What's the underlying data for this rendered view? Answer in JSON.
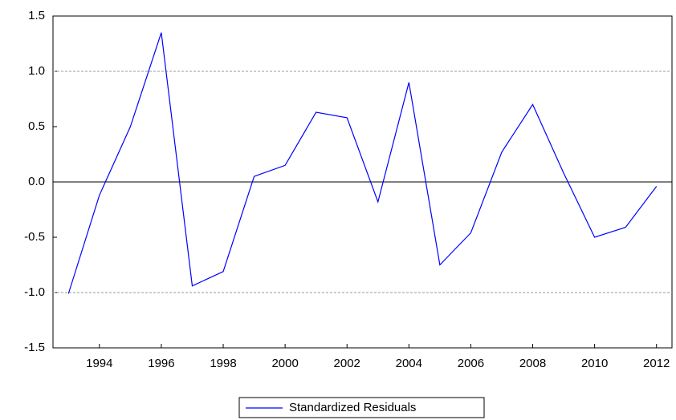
{
  "chart_data": {
    "type": "line",
    "x": [
      1993,
      1994,
      1995,
      1996,
      1997,
      1998,
      1999,
      2000,
      2001,
      2002,
      2003,
      2004,
      2005,
      2006,
      2007,
      2008,
      2009,
      2010,
      2011,
      2012
    ],
    "series": [
      {
        "name": "Standardized Residuals",
        "color": "#0000ff",
        "values": [
          -1.01,
          -0.12,
          0.5,
          1.35,
          -0.94,
          -0.81,
          0.05,
          0.15,
          0.63,
          0.58,
          -0.18,
          0.9,
          -0.75,
          -0.46,
          0.27,
          0.7,
          0.08,
          -0.5,
          -0.41,
          -0.04
        ]
      }
    ],
    "xlim": [
      1992.5,
      2012.5
    ],
    "xticks": [
      1994,
      1996,
      1998,
      2000,
      2002,
      2004,
      2006,
      2008,
      2010,
      2012
    ],
    "ylim": [
      -1.5,
      1.5
    ],
    "yticks": [
      1.5,
      {
        "value": 1,
        "label": "1.0"
      },
      0.5,
      {
        "value": 0,
        "label": "0.0"
      },
      -0.5,
      {
        "value": -1,
        "label": "-1.0"
      },
      -1.5
    ],
    "grid_values": [
      -1,
      1
    ],
    "zero_line": true,
    "legend": "bottom"
  }
}
